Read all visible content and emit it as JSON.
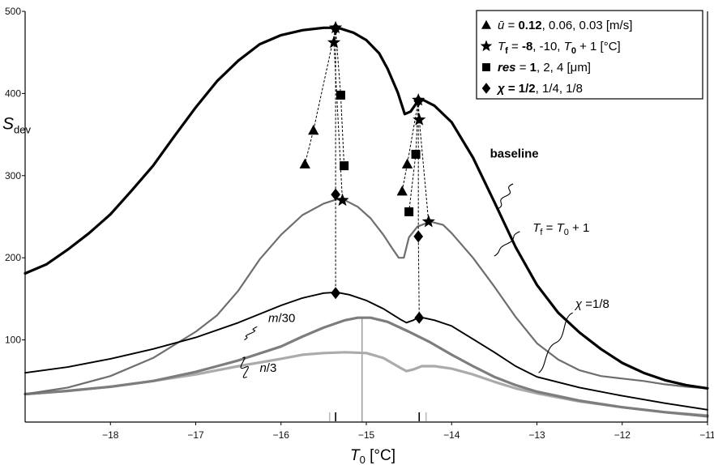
{
  "chart_data": {
    "type": "line",
    "xlabel": {
      "main": "T",
      "sub": "0",
      "unit": " [°C]"
    },
    "ylabel": {
      "main": "S",
      "sub": "dev"
    },
    "xlim": [
      -19,
      -11
    ],
    "ylim": [
      0,
      500
    ],
    "x_ticks": [
      -18,
      -17,
      -16,
      -15,
      -14,
      -13,
      -12,
      -11
    ],
    "x_tick_labels": [
      "−18",
      "−17",
      "−16",
      "−15",
      "−14",
      "−13",
      "−12",
      "−11"
    ],
    "y_ticks": [
      100,
      200,
      300,
      400,
      500
    ],
    "y_tick_labels": [
      "100",
      "200",
      "300",
      "400",
      "500"
    ],
    "grid": false,
    "series": [
      {
        "name": "baseline",
        "color": "#000000",
        "width": 3.2,
        "points": [
          [
            -19,
            181
          ],
          [
            -18.75,
            192
          ],
          [
            -18.5,
            210
          ],
          [
            -18.25,
            230
          ],
          [
            -18,
            253
          ],
          [
            -17.75,
            282
          ],
          [
            -17.5,
            312
          ],
          [
            -17.25,
            348
          ],
          [
            -17,
            383
          ],
          [
            -16.75,
            415
          ],
          [
            -16.5,
            440
          ],
          [
            -16.25,
            460
          ],
          [
            -16,
            471
          ],
          [
            -15.75,
            477
          ],
          [
            -15.5,
            480
          ],
          [
            -15.33,
            480
          ],
          [
            -15.15,
            474
          ],
          [
            -15,
            465
          ],
          [
            -14.85,
            449
          ],
          [
            -14.75,
            430
          ],
          [
            -14.63,
            401
          ],
          [
            -14.55,
            375
          ],
          [
            -14.48,
            378
          ],
          [
            -14.4,
            390
          ],
          [
            -14.33,
            392
          ],
          [
            -14.2,
            385
          ],
          [
            -14,
            365
          ],
          [
            -13.75,
            322
          ],
          [
            -13.5,
            268
          ],
          [
            -13.25,
            213
          ],
          [
            -13,
            167
          ],
          [
            -12.75,
            133
          ],
          [
            -12.5,
            109
          ],
          [
            -12.25,
            89
          ],
          [
            -12,
            72
          ],
          [
            -11.75,
            60
          ],
          [
            -11.5,
            51
          ],
          [
            -11.25,
            45
          ],
          [
            -11,
            41
          ]
        ]
      },
      {
        "name": "T_f = T_0 + 1",
        "color": "#6e6e6e",
        "width": 2.2,
        "points": [
          [
            -19,
            34
          ],
          [
            -18.5,
            42
          ],
          [
            -18,
            56
          ],
          [
            -17.5,
            78
          ],
          [
            -17,
            110
          ],
          [
            -16.75,
            130
          ],
          [
            -16.5,
            160
          ],
          [
            -16.25,
            198
          ],
          [
            -16,
            228
          ],
          [
            -15.75,
            252
          ],
          [
            -15.5,
            266
          ],
          [
            -15.35,
            271
          ],
          [
            -15.25,
            270
          ],
          [
            -15.1,
            262
          ],
          [
            -14.95,
            248
          ],
          [
            -14.8,
            228
          ],
          [
            -14.7,
            212
          ],
          [
            -14.62,
            200
          ],
          [
            -14.56,
            200
          ],
          [
            -14.5,
            225
          ],
          [
            -14.4,
            238
          ],
          [
            -14.25,
            244
          ],
          [
            -14.1,
            240
          ],
          [
            -14,
            230
          ],
          [
            -13.75,
            200
          ],
          [
            -13.5,
            165
          ],
          [
            -13.25,
            128
          ],
          [
            -13,
            96
          ],
          [
            -12.75,
            76
          ],
          [
            -12.5,
            63
          ],
          [
            -12.25,
            56
          ],
          [
            -12,
            53
          ],
          [
            -11.75,
            50
          ],
          [
            -11.5,
            46
          ],
          [
            -11.25,
            43
          ],
          [
            -11,
            41
          ]
        ]
      },
      {
        "name": "χ = 1/8",
        "color": "#000000",
        "width": 1.9,
        "points": [
          [
            -19,
            60
          ],
          [
            -18.5,
            67
          ],
          [
            -18,
            77
          ],
          [
            -17.5,
            89
          ],
          [
            -17,
            103
          ],
          [
            -16.5,
            121
          ],
          [
            -16,
            142
          ],
          [
            -15.75,
            151
          ],
          [
            -15.5,
            157
          ],
          [
            -15.35,
            158
          ],
          [
            -15.2,
            155
          ],
          [
            -15,
            148
          ],
          [
            -14.8,
            138
          ],
          [
            -14.6,
            125
          ],
          [
            -14.53,
            121
          ],
          [
            -14.45,
            124
          ],
          [
            -14.38,
            128
          ],
          [
            -14.2,
            124
          ],
          [
            -14,
            117
          ],
          [
            -13.75,
            101
          ],
          [
            -13.5,
            85
          ],
          [
            -13.25,
            68
          ],
          [
            -13,
            55
          ],
          [
            -12.5,
            42
          ],
          [
            -12,
            32
          ],
          [
            -11.5,
            23
          ],
          [
            -11,
            15
          ]
        ]
      },
      {
        "name": "m/30",
        "color": "#7d7d7d",
        "width": 3.2,
        "points": [
          [
            -19,
            34
          ],
          [
            -18.5,
            38
          ],
          [
            -18,
            43
          ],
          [
            -17.5,
            50
          ],
          [
            -17,
            61
          ],
          [
            -16.5,
            75
          ],
          [
            -16,
            92
          ],
          [
            -15.75,
            104
          ],
          [
            -15.5,
            115
          ],
          [
            -15.25,
            124
          ],
          [
            -15.1,
            127
          ],
          [
            -14.95,
            127
          ],
          [
            -14.75,
            122
          ],
          [
            -14.5,
            110
          ],
          [
            -14.25,
            97
          ],
          [
            -14,
            82
          ],
          [
            -13.75,
            68
          ],
          [
            -13.5,
            55
          ],
          [
            -13.25,
            45
          ],
          [
            -13,
            37
          ],
          [
            -12.5,
            26
          ],
          [
            -12,
            18
          ],
          [
            -11.5,
            12
          ],
          [
            -11,
            7
          ]
        ]
      },
      {
        "name": "n/3",
        "color": "#ababab",
        "width": 3.2,
        "points": [
          [
            -19,
            34
          ],
          [
            -18.5,
            38
          ],
          [
            -18,
            43
          ],
          [
            -17.5,
            50
          ],
          [
            -17,
            58
          ],
          [
            -16.5,
            68
          ],
          [
            -16,
            77
          ],
          [
            -15.75,
            82
          ],
          [
            -15.5,
            84
          ],
          [
            -15.25,
            85
          ],
          [
            -15,
            84
          ],
          [
            -14.8,
            78
          ],
          [
            -14.6,
            66
          ],
          [
            -14.53,
            62
          ],
          [
            -14.45,
            64
          ],
          [
            -14.35,
            68
          ],
          [
            -14.2,
            68
          ],
          [
            -14,
            65
          ],
          [
            -13.75,
            58
          ],
          [
            -13.5,
            49
          ],
          [
            -13.25,
            41
          ],
          [
            -13,
            35
          ],
          [
            -12.5,
            25
          ],
          [
            -12,
            18
          ],
          [
            -11.5,
            12
          ],
          [
            -11,
            8
          ]
        ]
      }
    ],
    "markers": [
      {
        "shape": "triangle",
        "x": -15.62,
        "y": 355
      },
      {
        "shape": "triangle",
        "x": -15.72,
        "y": 314
      },
      {
        "shape": "triangle",
        "x": -14.52,
        "y": 314
      },
      {
        "shape": "triangle",
        "x": -14.58,
        "y": 281
      },
      {
        "shape": "star",
        "x": -15.36,
        "y": 480
      },
      {
        "shape": "star",
        "x": -15.38,
        "y": 462
      },
      {
        "shape": "star",
        "x": -15.28,
        "y": 270
      },
      {
        "shape": "star",
        "x": -14.39,
        "y": 392
      },
      {
        "shape": "star",
        "x": -14.38,
        "y": 368
      },
      {
        "shape": "star",
        "x": -14.27,
        "y": 244
      },
      {
        "shape": "square",
        "x": -15.3,
        "y": 398
      },
      {
        "shape": "square",
        "x": -15.26,
        "y": 312
      },
      {
        "shape": "square",
        "x": -14.42,
        "y": 326
      },
      {
        "shape": "square",
        "x": -14.5,
        "y": 256
      },
      {
        "shape": "diamond",
        "x": -15.36,
        "y": 479
      },
      {
        "shape": "diamond",
        "x": -15.36,
        "y": 277
      },
      {
        "shape": "diamond",
        "x": -15.36,
        "y": 157
      },
      {
        "shape": "diamond",
        "x": -14.39,
        "y": 391
      },
      {
        "shape": "diamond",
        "x": -14.39,
        "y": 226
      },
      {
        "shape": "diamond",
        "x": -14.38,
        "y": 127
      }
    ],
    "dashed_links": [
      [
        [
          -15.36,
          479
        ],
        [
          -15.62,
          355
        ],
        [
          -15.72,
          314
        ]
      ],
      [
        [
          -15.36,
          479
        ],
        [
          -15.3,
          398
        ],
        [
          -15.26,
          312
        ]
      ],
      [
        [
          -15.36,
          479
        ],
        [
          -15.38,
          462
        ],
        [
          -15.28,
          270
        ]
      ],
      [
        [
          -14.39,
          391
        ],
        [
          -14.52,
          314
        ],
        [
          -14.58,
          281
        ]
      ],
      [
        [
          -14.39,
          391
        ],
        [
          -14.42,
          326
        ],
        [
          -14.5,
          256
        ]
      ],
      [
        [
          -14.39,
          391
        ],
        [
          -14.38,
          368
        ],
        [
          -14.27,
          244
        ]
      ],
      [
        [
          -15.36,
          479
        ],
        [
          -15.36,
          277
        ],
        [
          -15.36,
          157
        ]
      ],
      [
        [
          -14.39,
          391
        ],
        [
          -14.39,
          226
        ],
        [
          -14.38,
          127
        ]
      ]
    ],
    "ref_lines": [
      {
        "x": -15.05,
        "y1": 0,
        "y2": 127,
        "color": "#999999"
      }
    ],
    "bottom_ticks": [
      {
        "x": -15.43,
        "color": "#bbbbbb"
      },
      {
        "x": -15.36,
        "color": "#000000"
      },
      {
        "x": -14.38,
        "color": "#000000"
      },
      {
        "x": -14.3,
        "color": "#bbbbbb"
      }
    ],
    "annotations": [
      {
        "id": "baseline",
        "text": "baseline",
        "bold": true,
        "tx": -13.55,
        "ty": 322,
        "ox": -13.28,
        "oy": 290,
        "ex": -13.45,
        "ey": 260
      },
      {
        "id": "tf",
        "main": "T",
        "sub": "f",
        "rest": " = T",
        "sub2": "0",
        "tail": " + 1",
        "tx": -13.05,
        "ty": 232,
        "ox": -13.2,
        "oy": 232,
        "ex": -13.5,
        "ey": 202
      },
      {
        "id": "chi",
        "text": "χ =1/8",
        "tx": -12.55,
        "ty": 139,
        "ox": -12.58,
        "oy": 133,
        "ex": -12.98,
        "ey": 60
      },
      {
        "id": "m30",
        "text": "m/30",
        "italic_part": "m",
        "tx": -16.15,
        "ty": 122,
        "ox": -16.28,
        "oy": 116,
        "ex": -16.43,
        "ey": 100
      },
      {
        "id": "n3",
        "text": "n/3",
        "italic_part": "n",
        "tx": -16.25,
        "ty": 61,
        "ox": -16.4,
        "oy": 55,
        "ex": -16.45,
        "ey": 78
      }
    ],
    "legend": {
      "placement": "top-right",
      "items": [
        {
          "symbol": "triangle",
          "parts": [
            [
              "ū",
              "i"
            ],
            [
              " = ",
              ""
            ],
            [
              "0.12",
              "b"
            ],
            [
              ", 0.06, 0.03 [m/s]",
              ""
            ]
          ]
        },
        {
          "symbol": "star",
          "parts": [
            [
              "T",
              "i"
            ],
            [
              "f",
              "sub"
            ],
            [
              " = ",
              ""
            ],
            [
              "-8",
              "b"
            ],
            [
              ", -10, ",
              ""
            ],
            [
              "T",
              "i"
            ],
            [
              "0",
              "sub"
            ],
            [
              " + 1 [°C]",
              ""
            ]
          ]
        },
        {
          "symbol": "square",
          "parts": [
            [
              "res",
              "ib"
            ],
            [
              " = ",
              ""
            ],
            [
              "1",
              "b"
            ],
            [
              ", 2, 4 [μm]",
              ""
            ]
          ]
        },
        {
          "symbol": "diamond",
          "parts": [
            [
              "χ",
              "ib"
            ],
            [
              " = ",
              "b"
            ],
            [
              "1/2",
              "b"
            ],
            [
              ", 1/4, 1/8",
              ""
            ]
          ]
        }
      ]
    }
  }
}
